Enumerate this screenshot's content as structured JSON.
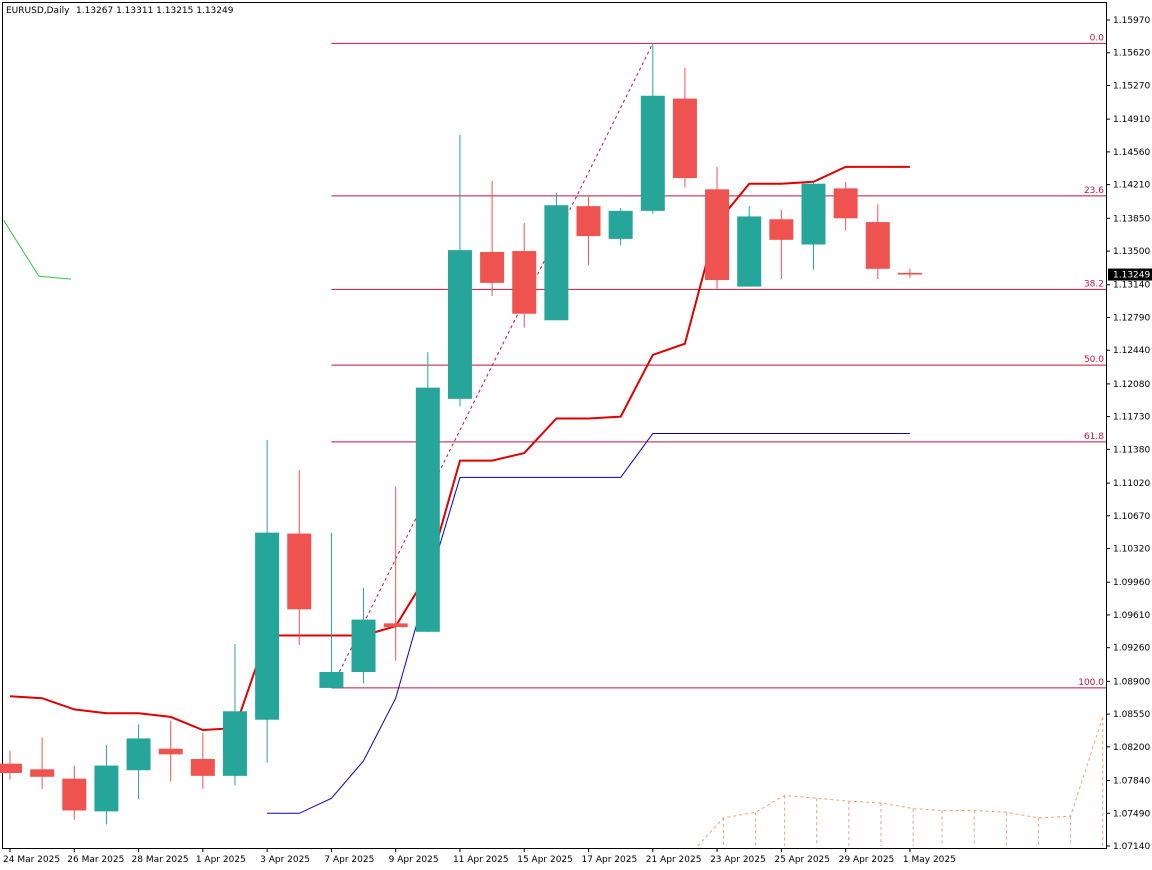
{
  "chart_data": {
    "type": "candlestick",
    "header": {
      "symbol": "EURUSD,Daily",
      "ohlc": "1.13267 1.13311 1.13215 1.13249"
    },
    "current_price": {
      "label": "1.13249",
      "value": 1.13249
    },
    "ylim": [
      1.0714,
      1.1597
    ],
    "y_ticks": [
      "1.15970",
      "1.15620",
      "1.15270",
      "1.14910",
      "1.14560",
      "1.14210",
      "1.13850",
      "1.13500",
      "1.13140",
      "1.12790",
      "1.12440",
      "1.12080",
      "1.11730",
      "1.11380",
      "1.11020",
      "1.10670",
      "1.10320",
      "1.09960",
      "1.09610",
      "1.09260",
      "1.08900",
      "1.08550",
      "1.08200",
      "1.07840",
      "1.07490",
      "1.07140"
    ],
    "x_labels": [
      {
        "i": 0,
        "label": "24 Mar 2025"
      },
      {
        "i": 2,
        "label": "26 Mar 2025"
      },
      {
        "i": 4,
        "label": "28 Mar 2025"
      },
      {
        "i": 6,
        "label": "1 Apr 2025"
      },
      {
        "i": 8,
        "label": "3 Apr 2025"
      },
      {
        "i": 10,
        "label": "7 Apr 2025"
      },
      {
        "i": 12,
        "label": "9 Apr 2025"
      },
      {
        "i": 14,
        "label": "11 Apr 2025"
      },
      {
        "i": 16,
        "label": "15 Apr 2025"
      },
      {
        "i": 18,
        "label": "17 Apr 2025"
      },
      {
        "i": 20,
        "label": "21 Apr 2025"
      },
      {
        "i": 22,
        "label": "23 Apr 2025"
      },
      {
        "i": 24,
        "label": "25 Apr 2025"
      },
      {
        "i": 26,
        "label": "29 Apr 2025"
      },
      {
        "i": 28,
        "label": "1 May 2025"
      }
    ],
    "candles": [
      {
        "o": 1.0802,
        "h": 1.0816,
        "l": 1.0785,
        "c": 1.0792
      },
      {
        "o": 1.0796,
        "h": 1.083,
        "l": 1.0775,
        "c": 1.0788
      },
      {
        "o": 1.0786,
        "h": 1.08,
        "l": 1.0742,
        "c": 1.0752
      },
      {
        "o": 1.0751,
        "h": 1.0822,
        "l": 1.0737,
        "c": 1.08
      },
      {
        "o": 1.0795,
        "h": 1.0844,
        "l": 1.0764,
        "c": 1.0829
      },
      {
        "o": 1.0818,
        "h": 1.0848,
        "l": 1.0783,
        "c": 1.0812
      },
      {
        "o": 1.0807,
        "h": 1.0835,
        "l": 1.0775,
        "c": 1.0789
      },
      {
        "o": 1.0789,
        "h": 1.093,
        "l": 1.0779,
        "c": 1.0858
      },
      {
        "o": 1.0849,
        "h": 1.1148,
        "l": 1.0803,
        "c": 1.1049
      },
      {
        "o": 1.1048,
        "h": 1.1116,
        "l": 1.0929,
        "c": 1.0967
      },
      {
        "o": 1.0883,
        "h": 1.1049,
        "l": 1.0883,
        "c": 1.09
      },
      {
        "o": 1.09,
        "h": 1.099,
        "l": 1.0888,
        "c": 1.0956
      },
      {
        "o": 1.0952,
        "h": 1.1098,
        "l": 1.0912,
        "c": 1.0948
      },
      {
        "o": 1.0943,
        "h": 1.1242,
        "l": 1.0943,
        "c": 1.1204
      },
      {
        "o": 1.1192,
        "h": 1.1474,
        "l": 1.1184,
        "c": 1.1351
      },
      {
        "o": 1.1349,
        "h": 1.1425,
        "l": 1.1302,
        "c": 1.1316
      },
      {
        "o": 1.135,
        "h": 1.138,
        "l": 1.1268,
        "c": 1.1283
      },
      {
        "o": 1.1276,
        "h": 1.1412,
        "l": 1.1276,
        "c": 1.1399
      },
      {
        "o": 1.1398,
        "h": 1.1408,
        "l": 1.1335,
        "c": 1.1366
      },
      {
        "o": 1.1363,
        "h": 1.1396,
        "l": 1.1356,
        "c": 1.1393
      },
      {
        "o": 1.1393,
        "h": 1.1572,
        "l": 1.139,
        "c": 1.1516
      },
      {
        "o": 1.1513,
        "h": 1.1546,
        "l": 1.1418,
        "c": 1.1428
      },
      {
        "o": 1.1416,
        "h": 1.144,
        "l": 1.131,
        "c": 1.1319
      },
      {
        "o": 1.1312,
        "h": 1.1398,
        "l": 1.1312,
        "c": 1.1387
      },
      {
        "o": 1.1384,
        "h": 1.1394,
        "l": 1.132,
        "c": 1.1362
      },
      {
        "o": 1.1357,
        "h": 1.1424,
        "l": 1.133,
        "c": 1.1422
      },
      {
        "o": 1.1417,
        "h": 1.1424,
        "l": 1.1372,
        "c": 1.1385
      },
      {
        "o": 1.1381,
        "h": 1.14,
        "l": 1.132,
        "c": 1.1331
      },
      {
        "o": 1.13267,
        "h": 1.13311,
        "l": 1.13215,
        "c": 1.13249
      }
    ],
    "colors": {
      "up": "#26a69a",
      "down": "#ef5350",
      "fib": "#c0143c",
      "background": "#ffffff"
    },
    "fibonacci": {
      "start_index": 10,
      "end_index": 31,
      "anchor_low": {
        "i": 10,
        "price": 1.0883
      },
      "anchor_high": {
        "i": 20,
        "price": 1.1572
      },
      "levels": [
        {
          "label": "0.0",
          "price": 1.1572
        },
        {
          "label": "23.6",
          "price": 1.1409
        },
        {
          "label": "38.2",
          "price": 1.1309
        },
        {
          "label": "50.0",
          "price": 1.1228
        },
        {
          "label": "61.8",
          "price": 1.1146
        },
        {
          "label": "100.0",
          "price": 1.0883
        }
      ]
    },
    "red_line": [
      1.0874,
      1.0872,
      1.086,
      1.0856,
      1.0856,
      1.0852,
      1.0838,
      1.084,
      1.0939,
      1.0939,
      1.0939,
      1.0939,
      1.0949,
      1.1005,
      1.1126,
      1.1126,
      1.1134,
      1.1171,
      1.1171,
      1.1173,
      1.1239,
      1.1251,
      1.138,
      1.1422,
      1.1422,
      1.1424,
      1.144,
      1.144,
      1.144
    ],
    "blue_line": [
      null,
      null,
      null,
      null,
      null,
      null,
      null,
      null,
      1.0749,
      1.0749,
      1.0765,
      1.0805,
      1.0872,
      1.0993,
      1.1108,
      1.1108,
      1.1108,
      1.1108,
      1.1108,
      1.1108,
      1.1155,
      1.1155,
      1.1155,
      1.1155,
      1.1155,
      1.1155,
      1.1155,
      1.1155,
      1.1155
    ],
    "green_line": [
      [
        -0.2,
        1.1383
      ],
      [
        0.9,
        1.1323
      ],
      [
        1.9,
        1.132
      ]
    ],
    "orange_dashed": [
      [
        21.4,
        1.0714
      ],
      [
        22.2,
        1.0744
      ],
      [
        23.2,
        1.075
      ],
      [
        24.1,
        1.0768
      ],
      [
        25.1,
        1.0765
      ],
      [
        26.1,
        1.0762
      ],
      [
        27.1,
        1.076
      ],
      [
        28.1,
        1.0754
      ],
      [
        29.0,
        1.0752
      ],
      [
        30.0,
        1.0752
      ],
      [
        31.0,
        1.075
      ],
      [
        32.0,
        1.0744
      ],
      [
        33.0,
        1.0746
      ],
      [
        34.0,
        1.0852
      ]
    ]
  }
}
